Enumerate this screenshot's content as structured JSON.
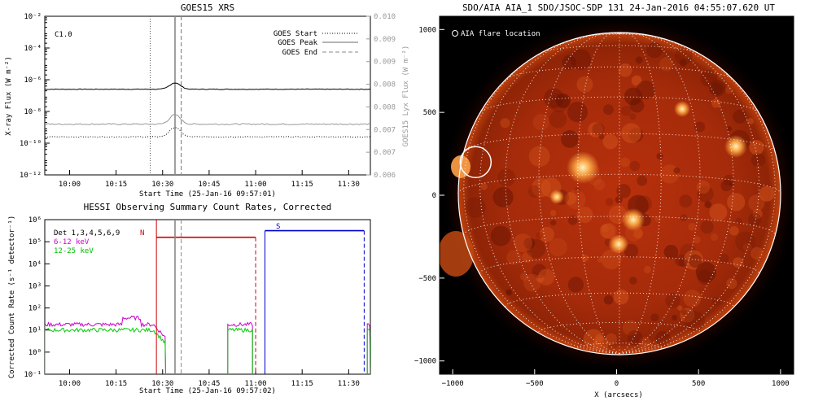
{
  "chart_data": [
    {
      "type": "line",
      "title": "GOES15 XRS",
      "xlabel": "Start Time (25-Jan-16 09:57:01)",
      "ylabel": "X-ray Flux (W m⁻²)",
      "ylabel_right": "GOES15 Lyx Flux (W m⁻²)",
      "x_ticks": [
        "10:00",
        "10:15",
        "10:30",
        "10:45",
        "11:00",
        "11:15",
        "11:30"
      ],
      "y_ticks": [
        "10⁻²",
        "10⁻⁴",
        "10⁻⁶",
        "10⁻⁸",
        "10⁻¹⁰",
        "10⁻¹²"
      ],
      "y_right_ticks": [
        "0.010",
        "0.009",
        "0.009",
        "0.008",
        "0.008",
        "0.007",
        "0.007",
        "0.006"
      ],
      "class_label": "C1.0",
      "ylim_log10": [
        -12,
        -2
      ],
      "xlim_minutes_after_0957": [
        -5,
        100
      ],
      "legend": [
        {
          "label": "GOES Start",
          "style": "dotted"
        },
        {
          "label": "GOES Peak",
          "style": "solid"
        },
        {
          "label": "GOES End",
          "style": "dashed"
        }
      ],
      "legend_placement": "top-right",
      "markers_minutes_after_0957": {
        "start": 29,
        "peak": 37,
        "end": 39
      },
      "series": [
        {
          "name": "long",
          "color": "#000000",
          "log10_level": -6.6,
          "peak_log10": -6.2
        },
        {
          "name": "short",
          "color": "#999999",
          "log10_level": -8.8,
          "peak_log10": -8.2
        },
        {
          "name": "lyx",
          "color": "#000000",
          "log10_level": -9.6
        }
      ]
    },
    {
      "type": "line",
      "title": "HESSI Observing Summary Count Rates, Corrected",
      "xlabel": "Start Time (25-Jan-16 09:57:02)",
      "ylabel": "Corrected Count Rate (s⁻¹ detector⁻¹)",
      "x_ticks": [
        "10:00",
        "10:15",
        "10:30",
        "10:45",
        "11:00",
        "11:15",
        "11:30"
      ],
      "y_ticks": [
        "10⁶",
        "10⁵",
        "10⁴",
        "10³",
        "10²",
        "10¹",
        "10⁰",
        "10⁻¹"
      ],
      "ylim_log10": [
        -1,
        6
      ],
      "legend": [
        {
          "label": "Det 1,3,4,5,6,9",
          "color": "#000000"
        },
        {
          "label": "6-12 keV",
          "color": "#cc00cc"
        },
        {
          "label": "12-25 keV",
          "color": "#00cc00"
        }
      ],
      "legend_placement": "top-left",
      "series": [
        {
          "name": "6-12 keV",
          "color": "#cc00cc",
          "log10_level": 1.25
        },
        {
          "name": "12-25 keV",
          "color": "#00cc00",
          "log10_level": 1.0
        }
      ],
      "night_label": "N",
      "saa_label": "S",
      "night_bar_log10": 5.2,
      "saa_bar_log10": 5.5
    },
    {
      "type": "image",
      "title": "SDO/AIA AIA_1 SDO/JSOC-SDP 131 24-Jan-2016 04:55:07.620 UT",
      "xlabel": "X (arcsecs)",
      "x_ticks": [
        "−1000",
        "−500",
        "0",
        "500",
        "1000"
      ],
      "y_ticks": [
        "1000",
        "500",
        "0",
        "−500",
        "−1000"
      ],
      "xlim": [
        -1080,
        1080
      ],
      "ylim": [
        -1080,
        1080
      ],
      "legend": [
        {
          "label": "AIA flare location",
          "marker": "circle"
        }
      ],
      "flare_location": {
        "x": -860,
        "y": 200
      }
    }
  ]
}
